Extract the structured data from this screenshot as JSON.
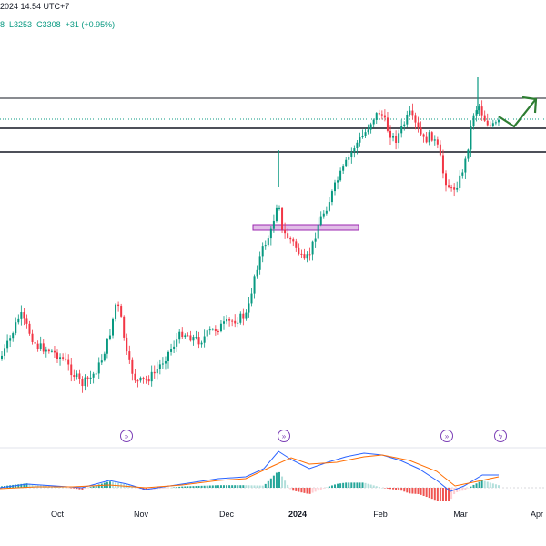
{
  "header": {
    "datetime": "2024 14:54 UTC+7",
    "ohlc_tail": "8",
    "low": "L3253",
    "close": "C3308",
    "change": "+31 (+0.95%)"
  },
  "x_axis": {
    "labels": [
      {
        "text": "Oct",
        "bold": false
      },
      {
        "text": "Nov",
        "bold": false
      },
      {
        "text": "Dec",
        "bold": false
      },
      {
        "text": "2024",
        "bold": true
      },
      {
        "text": "Feb",
        "bold": false
      },
      {
        "text": "Mar",
        "bold": false
      },
      {
        "text": "Apr",
        "bold": false
      }
    ]
  },
  "events": [
    {
      "icon": "arrow-right-circle-icon",
      "glyph": "»"
    },
    {
      "icon": "arrow-right-circle-icon",
      "glyph": "»"
    },
    {
      "icon": "arrow-right-circle-icon",
      "glyph": "»"
    },
    {
      "icon": "lightning-circle-icon",
      "glyph": "ϟ"
    }
  ],
  "colors": {
    "up": "#089981",
    "down": "#f23645",
    "macd": "#2962ff",
    "signal": "#ff6d00",
    "hist_up": "#26a69a",
    "hist_up_light": "#b2dfdb",
    "hist_down": "#ef5350",
    "hist_down_light": "#ffcdd2",
    "box_fill": "#e1bee7",
    "box_stroke": "#9c27b0",
    "arrow": "#2e7d32",
    "level": "#131722"
  }
}
